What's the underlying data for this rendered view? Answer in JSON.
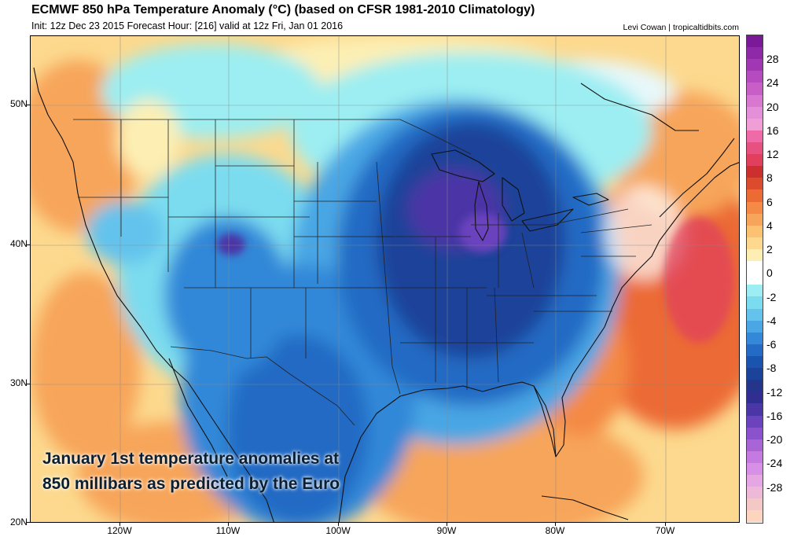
{
  "header": {
    "title": "ECMWF 850 hPa Temperature Anomaly (°C) (based on CFSR 1981-2010 Climatology)",
    "subtitle": "Init: 12z Dec 23 2015   Forecast Hour: [216]   valid at 12z Fri, Jan 01 2016",
    "credit": "Levi Cowan | tropicaltidbits.com"
  },
  "map": {
    "region": "United States",
    "lat_labels": [
      "50N",
      "40N",
      "30N",
      "20N"
    ],
    "lon_labels": [
      "120W",
      "110W",
      "100W",
      "90W",
      "80W",
      "70W"
    ],
    "caption_line1": "January 1st temperature anomalies at",
    "caption_line2": "850 millibars as predicted by the Euro"
  },
  "colorbar": {
    "labels": [
      "28",
      "24",
      "20",
      "16",
      "12",
      "8",
      "6",
      "4",
      "2",
      "0",
      "-2",
      "-4",
      "-6",
      "-8",
      "-12",
      "-16",
      "-20",
      "-24",
      "-28"
    ],
    "colors": [
      "#7a1a99",
      "#8e2aa8",
      "#a237b4",
      "#b64bbf",
      "#c85fc8",
      "#d878d1",
      "#e58fd8",
      "#ef9fd6",
      "#f06aa8",
      "#e8507f",
      "#e0405e",
      "#cc2f2f",
      "#dd4b2d",
      "#ec6b35",
      "#f48a45",
      "#f7a55a",
      "#fbc271",
      "#fcd98e",
      "#fdefb3",
      "#ffffff",
      "#ffffff",
      "#9ceef2",
      "#7cdcef",
      "#63c3ec",
      "#4aa6e4",
      "#3388d8",
      "#236bc4",
      "#1a54ae",
      "#1a4399",
      "#23368c",
      "#312e92",
      "#4b36a6",
      "#6a43bd",
      "#8a52cc",
      "#a865d6",
      "#c47ae0",
      "#d890e6",
      "#e5a6e4",
      "#eeb8d8",
      "#f5c8c8",
      "#fbd5bd"
    ]
  }
}
